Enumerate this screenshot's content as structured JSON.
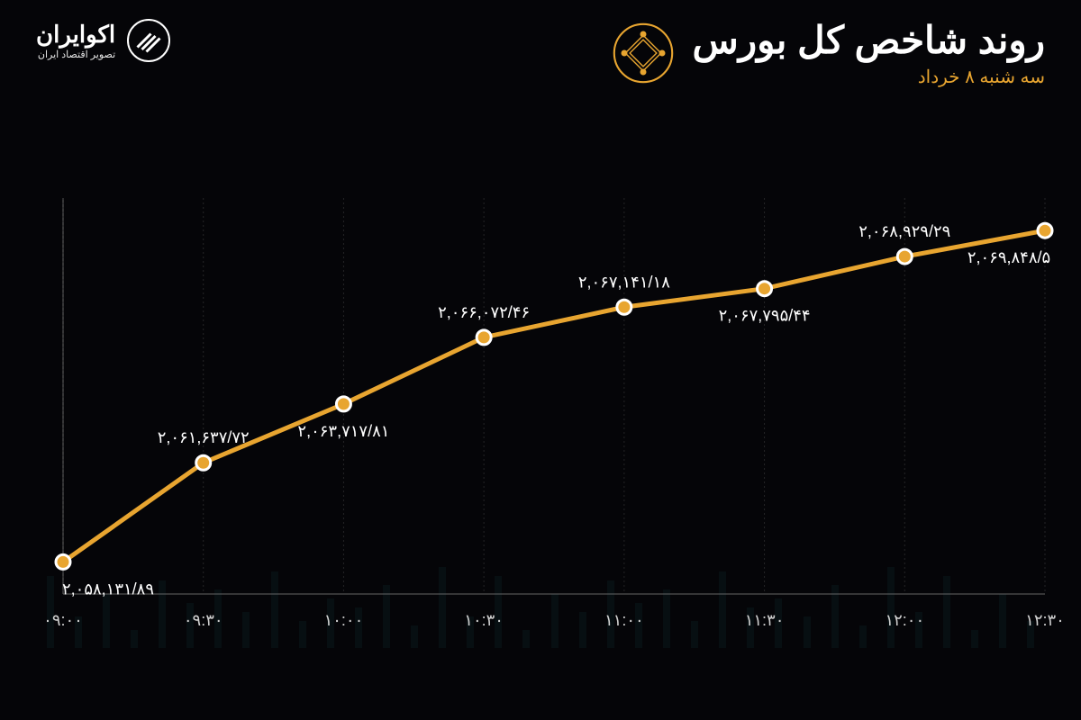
{
  "header": {
    "title": "روند شاخص کل بورس",
    "subtitle": "سه شنبه ۸ خرداد"
  },
  "brand": {
    "name": "اکوایران",
    "tagline": "تصویر اقتصاد ایران"
  },
  "chart": {
    "type": "line",
    "background_color": "#050508",
    "line_color": "#e8a530",
    "marker_fill": "#e8a530",
    "marker_stroke": "#ffffff",
    "marker_radius": 8,
    "line_width": 5,
    "axis_color": "#666666",
    "grid_color": "#444444",
    "xlabel_color": "#d0d0d0",
    "value_color": "#ffffff",
    "xlabel_fontsize": 18,
    "value_fontsize": 18,
    "title_fontsize": 42,
    "subtitle_fontsize": 20,
    "subtitle_color": "#e8a530",
    "ylim_min": 2057000,
    "ylim_max": 2071000,
    "x_labels": [
      "۰۹:۰۰",
      "۰۹:۳۰",
      "۱۰:۰۰",
      "۱۰:۳۰",
      "۱۱:۰۰",
      "۱۱:۳۰",
      "۱۲:۰۰",
      "۱۲:۳۰"
    ],
    "values": [
      2058131.89,
      2061637.72,
      2063717.81,
      2066072.46,
      2067141.18,
      2067795.44,
      2068929.29,
      2069848.5
    ],
    "value_labels": [
      "۲,۰۵۸,۱۳۱/۸۹",
      "۲,۰۶۱,۶۳۷/۷۲",
      "۲,۰۶۳,۷۱۷/۸۱",
      "۲,۰۶۶,۰۷۲/۴۶",
      "۲,۰۶۷,۱۴۱/۱۸",
      "۲,۰۶۷,۷۹۵/۴۴",
      "۲,۰۶۸,۹۲۹/۲۹",
      "۲,۰۶۹,۸۴۸/۵"
    ],
    "label_positions": [
      "below",
      "above",
      "below",
      "above",
      "above",
      "below",
      "above",
      "below"
    ]
  }
}
